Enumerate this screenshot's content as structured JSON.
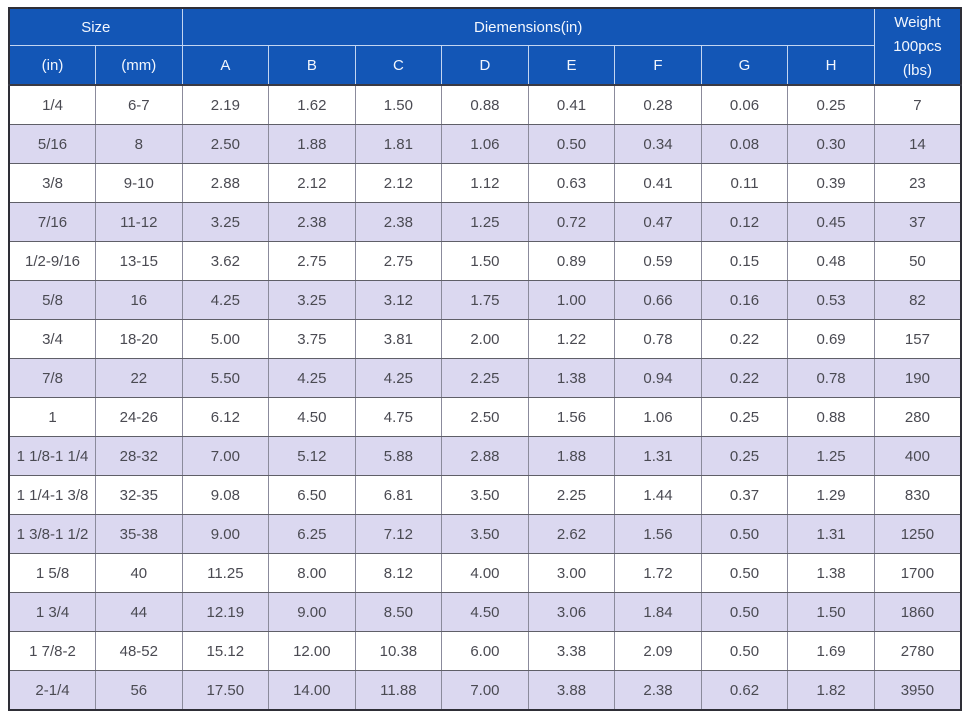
{
  "table": {
    "header": {
      "size_label": "Size",
      "dimensions_label": "Diemensions(in)",
      "weight_label": "Weight 100pcs (lbs)",
      "sub_headers": [
        "(in)",
        "(mm)",
        "A",
        "B",
        "C",
        "D",
        "E",
        "F",
        "G",
        "H"
      ]
    },
    "rows": [
      [
        "1/4",
        "6-7",
        "2.19",
        "1.62",
        "1.50",
        "0.88",
        "0.41",
        "0.28",
        "0.06",
        "0.25",
        "7"
      ],
      [
        "5/16",
        "8",
        "2.50",
        "1.88",
        "1.81",
        "1.06",
        "0.50",
        "0.34",
        "0.08",
        "0.30",
        "14"
      ],
      [
        "3/8",
        "9-10",
        "2.88",
        "2.12",
        "2.12",
        "1.12",
        "0.63",
        "0.41",
        "0.11",
        "0.39",
        "23"
      ],
      [
        "7/16",
        "11-12",
        "3.25",
        "2.38",
        "2.38",
        "1.25",
        "0.72",
        "0.47",
        "0.12",
        "0.45",
        "37"
      ],
      [
        "1/2-9/16",
        "13-15",
        "3.62",
        "2.75",
        "2.75",
        "1.50",
        "0.89",
        "0.59",
        "0.15",
        "0.48",
        "50"
      ],
      [
        "5/8",
        "16",
        "4.25",
        "3.25",
        "3.12",
        "1.75",
        "1.00",
        "0.66",
        "0.16",
        "0.53",
        "82"
      ],
      [
        "3/4",
        "18-20",
        "5.00",
        "3.75",
        "3.81",
        "2.00",
        "1.22",
        "0.78",
        "0.22",
        "0.69",
        "157"
      ],
      [
        "7/8",
        "22",
        "5.50",
        "4.25",
        "4.25",
        "2.25",
        "1.38",
        "0.94",
        "0.22",
        "0.78",
        "190"
      ],
      [
        "1",
        "24-26",
        "6.12",
        "4.50",
        "4.75",
        "2.50",
        "1.56",
        "1.06",
        "0.25",
        "0.88",
        "280"
      ],
      [
        "1 1/8-1 1/4",
        "28-32",
        "7.00",
        "5.12",
        "5.88",
        "2.88",
        "1.88",
        "1.31",
        "0.25",
        "1.25",
        "400"
      ],
      [
        "1 1/4-1 3/8",
        "32-35",
        "9.08",
        "6.50",
        "6.81",
        "3.50",
        "2.25",
        "1.44",
        "0.37",
        "1.29",
        "830"
      ],
      [
        "1 3/8-1 1/2",
        "35-38",
        "9.00",
        "6.25",
        "7.12",
        "3.50",
        "2.62",
        "1.56",
        "0.50",
        "1.31",
        "1250"
      ],
      [
        "1 5/8",
        "40",
        "11.25",
        "8.00",
        "8.12",
        "4.00",
        "3.00",
        "1.72",
        "0.50",
        "1.38",
        "1700"
      ],
      [
        "1 3/4",
        "44",
        "12.19",
        "9.00",
        "8.50",
        "4.50",
        "3.06",
        "1.84",
        "0.50",
        "1.50",
        "1860"
      ],
      [
        "1 7/8-2",
        "48-52",
        "15.12",
        "12.00",
        "10.38",
        "6.00",
        "3.38",
        "2.09",
        "0.50",
        "1.69",
        "2780"
      ],
      [
        "2-1/4",
        "56",
        "17.50",
        "14.00",
        "11.88",
        "7.00",
        "3.88",
        "2.38",
        "0.62",
        "1.82",
        "3950"
      ]
    ]
  },
  "colors": {
    "header_background": "#1356b6",
    "header_text": "#f2f6fd",
    "row_alternate_background": "#dbd8f0",
    "row_background": "#ffffff",
    "body_text": "#4a4a52",
    "outer_border": "#2e2e36",
    "header_grid_line": "#c3d5f1",
    "vertical_grid_line": "#8b8b9c",
    "horizontal_grid_line": "#5f5f68"
  }
}
